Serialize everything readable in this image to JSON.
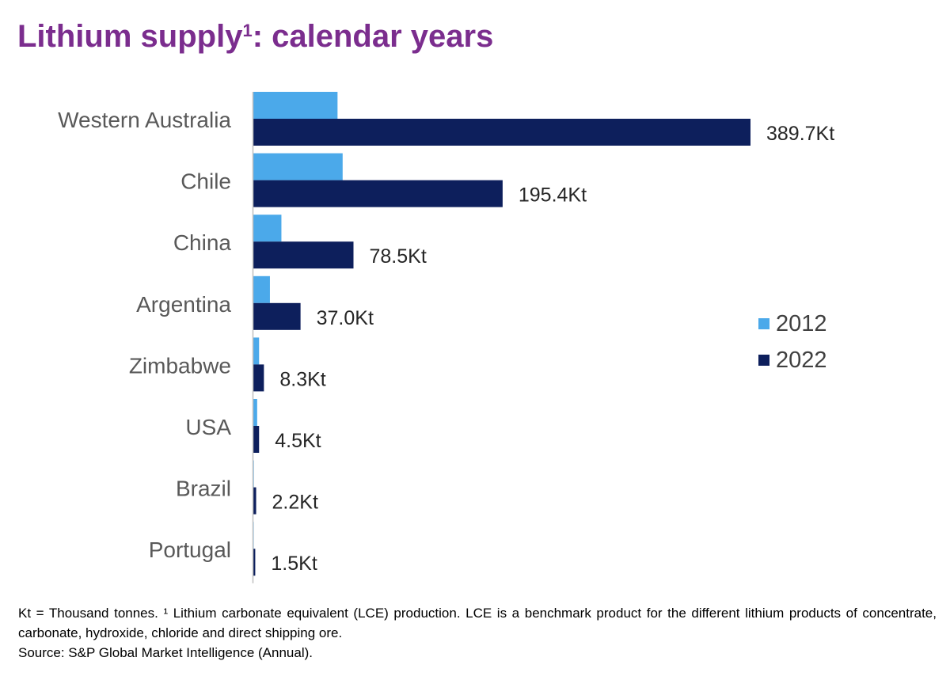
{
  "title": {
    "main": "Lithium supply",
    "sup": "1",
    "suffix": ": calendar years"
  },
  "colors": {
    "series_2012": "#4ba9ea",
    "series_2022": "#0d1f5c",
    "axis": "#bfbfbf",
    "title": "#7b2d8e"
  },
  "legend": {
    "items": [
      "2012",
      "2022"
    ]
  },
  "chart_data": {
    "type": "bar",
    "orientation": "horizontal",
    "title": "Lithium supply1: calendar years",
    "categories": [
      "Western Australia",
      "Chile",
      "China",
      "Argentina",
      "Zimbabwe",
      "USA",
      "Brazil",
      "Portugal"
    ],
    "series": [
      {
        "name": "2012",
        "values": [
          66,
          70,
          22,
          13,
          4.5,
          3,
          0.4,
          0.3
        ]
      },
      {
        "name": "2022",
        "values": [
          389.7,
          195.4,
          78.5,
          37.0,
          8.3,
          4.5,
          2.2,
          1.5
        ]
      }
    ],
    "data_labels": [
      "389.7Kt",
      "195.4Kt",
      "78.5Kt",
      "37.0Kt",
      "8.3Kt",
      "4.5Kt",
      "2.2Kt",
      "1.5Kt"
    ],
    "xlim": [
      0,
      389.7
    ],
    "legend_position": "right",
    "grid": false
  },
  "footnote": {
    "line1": "Kt = Thousand tonnes. ¹ Lithium carbonate equivalent (LCE) production. LCE is a benchmark product for the different lithium products of concentrate, carbonate, hydroxide, chloride and direct shipping ore.",
    "line2": "Source: S&P Global Market Intelligence (Annual)."
  }
}
